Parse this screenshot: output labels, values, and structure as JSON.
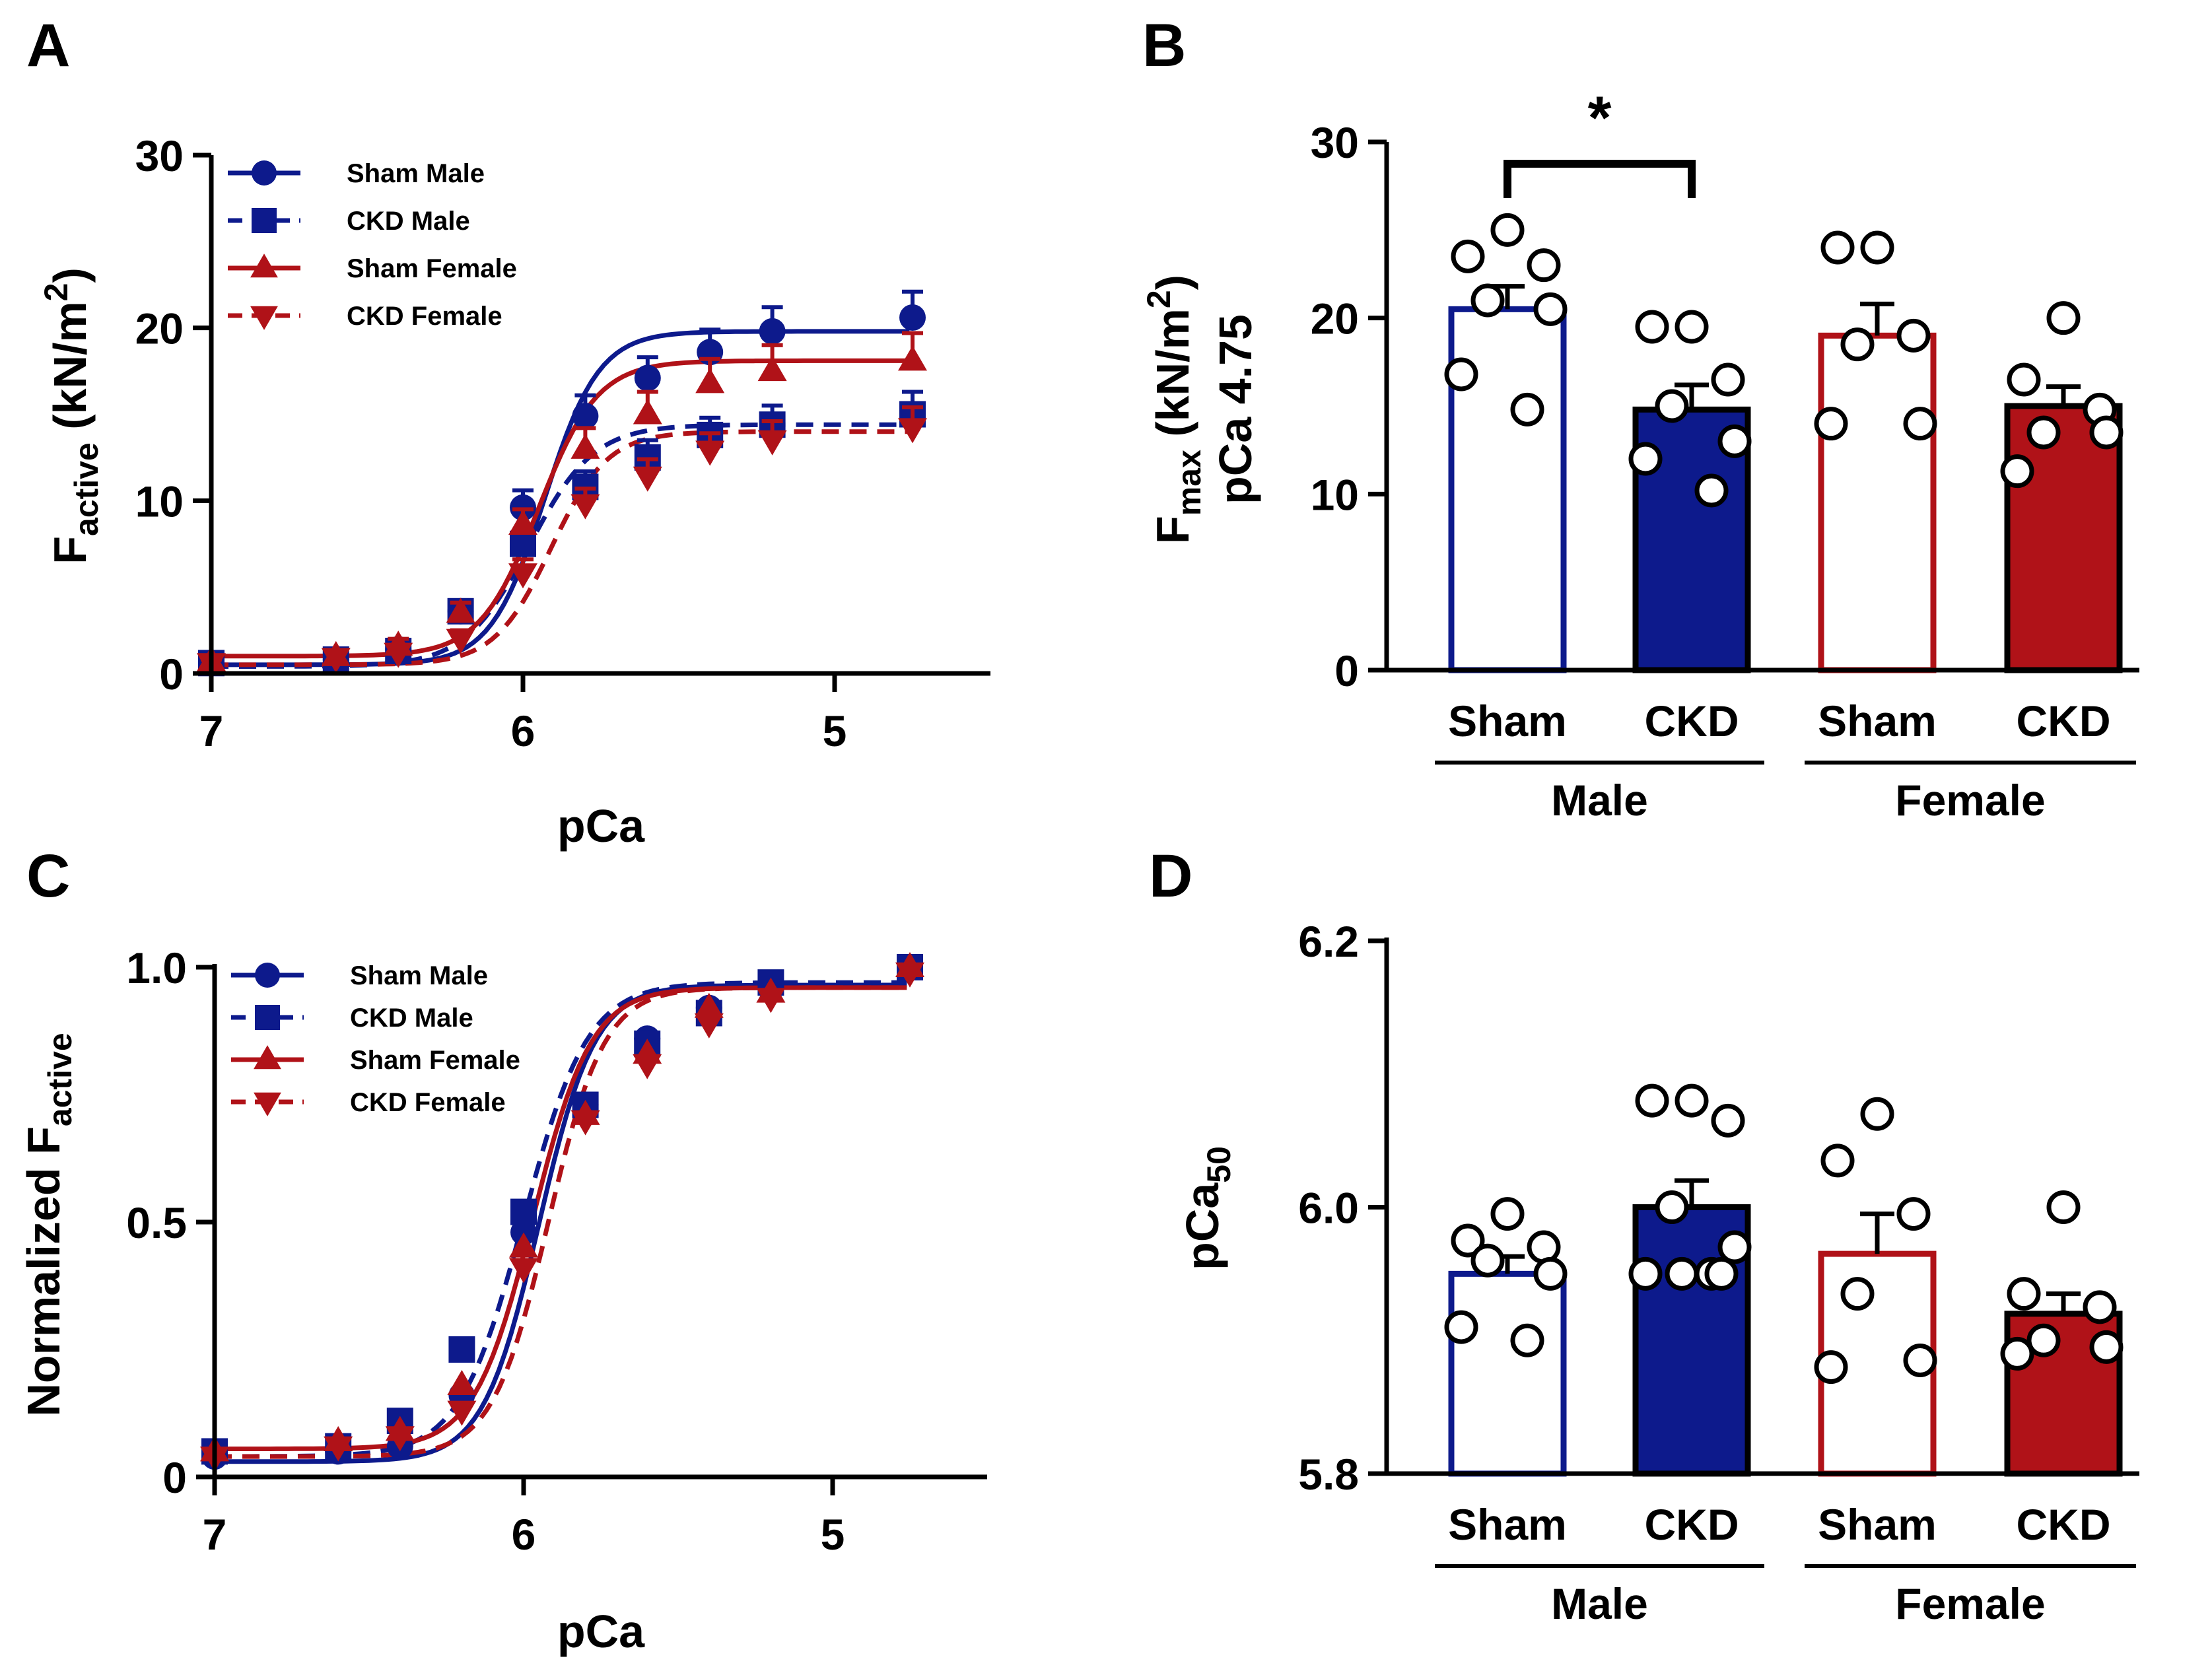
{
  "colors": {
    "navy": "#0d1a8c",
    "red": "#b01218",
    "black": "#000000"
  },
  "chart_data": [
    {
      "panel": "A",
      "type": "line",
      "xlabel": "pCa",
      "ylabel_main": "F",
      "ylabel_sub": "active",
      "ylabel_unit_pre": " (kN/m",
      "ylabel_unit_sup": "2",
      "ylabel_unit_post": ")",
      "xlim": [
        7,
        4.5
      ],
      "ylim": [
        0,
        30
      ],
      "xticks": [
        7,
        6,
        5
      ],
      "xtick_labels": [
        "7",
        "6",
        "5"
      ],
      "yticks": [
        0,
        10,
        20,
        30
      ],
      "ytick_labels": [
        "0",
        "10",
        "20",
        "30"
      ],
      "legend_position": "top-left",
      "x": [
        7.0,
        6.6,
        6.4,
        6.2,
        6.0,
        5.8,
        5.6,
        5.4,
        5.2,
        4.75
      ],
      "series": [
        {
          "name": "Sham Male",
          "color": "navy",
          "marker": "circle",
          "dash": "solid",
          "values": [
            0.6,
            0.8,
            1.4,
            3.6,
            9.6,
            14.9,
            17.1,
            18.6,
            19.8,
            20.6
          ],
          "errors": [
            0.2,
            0.3,
            0.4,
            0.6,
            1.0,
            1.2,
            1.2,
            1.3,
            1.4,
            1.5
          ],
          "fit": {
            "bottom": 0.5,
            "top": 19.8,
            "pca50": 5.93,
            "hill": 5.0
          }
        },
        {
          "name": "CKD Male",
          "color": "navy",
          "marker": "square",
          "dash": "dashed",
          "values": [
            0.6,
            0.8,
            1.3,
            3.6,
            7.5,
            10.8,
            12.5,
            13.8,
            14.4,
            15.0
          ],
          "errors": [
            0.2,
            0.3,
            0.3,
            0.5,
            0.8,
            0.9,
            1.0,
            1.0,
            1.1,
            1.3
          ],
          "fit": {
            "bottom": 0.4,
            "top": 14.4,
            "pca50": 5.98,
            "hill": 4.2
          }
        },
        {
          "name": "Sham Female",
          "color": "red",
          "marker": "triangle-up",
          "dash": "solid",
          "values": [
            0.7,
            1.0,
            1.6,
            3.5,
            8.6,
            13.0,
            15.0,
            16.8,
            17.5,
            18.1
          ],
          "errors": [
            0.2,
            0.3,
            0.4,
            0.6,
            0.9,
            1.2,
            1.3,
            1.4,
            1.5,
            1.6
          ],
          "fit": {
            "bottom": 1.0,
            "top": 18.1,
            "pca50": 5.95,
            "hill": 4.6
          }
        },
        {
          "name": "CKD  Female",
          "color": "red",
          "marker": "triangle-down",
          "dash": "dashed",
          "values": [
            0.6,
            0.9,
            1.2,
            2.0,
            5.8,
            9.8,
            11.4,
            12.9,
            13.5,
            14.2
          ],
          "errors": [
            0.2,
            0.3,
            0.3,
            0.5,
            0.8,
            0.9,
            1.0,
            1.0,
            1.1,
            1.2
          ],
          "fit": {
            "bottom": 0.5,
            "top": 14.0,
            "pca50": 5.91,
            "hill": 4.8
          }
        }
      ]
    },
    {
      "panel": "B",
      "type": "bar",
      "ylabel_line1_main": "F",
      "ylabel_line1_sub": "max",
      "ylabel_line1_unit_pre": " (kN/m",
      "ylabel_line1_unit_sup": "2",
      "ylabel_line1_unit_post": ")",
      "ylabel_line2": "pCa 4.75",
      "ylim": [
        0,
        30
      ],
      "yticks": [
        0,
        10,
        20,
        30
      ],
      "ytick_labels": [
        "0",
        "10",
        "20",
        "30"
      ],
      "categories": [
        "Sham",
        "CKD",
        "Sham",
        "CKD"
      ],
      "groups": [
        "Male",
        "Female"
      ],
      "bar_fill": [
        "none",
        "navy",
        "none",
        "red"
      ],
      "bar_edge": [
        "navy",
        "black",
        "red",
        "black"
      ],
      "values": [
        20.5,
        14.8,
        19.0,
        15.0
      ],
      "errors": [
        1.3,
        1.4,
        1.8,
        1.1
      ],
      "points": [
        [
          25.0,
          23.5,
          23.0,
          21.0,
          20.5,
          16.8,
          14.8
        ],
        [
          19.5,
          19.5,
          16.5,
          15.0,
          13.0,
          12.0,
          10.2
        ],
        [
          24.0,
          24.0,
          19.0,
          18.5,
          14.0,
          14.0
        ],
        [
          20.0,
          16.5,
          14.8,
          13.5,
          13.5,
          11.3
        ]
      ],
      "significance": {
        "label": "*",
        "between": [
          0,
          1
        ]
      }
    },
    {
      "panel": "C",
      "type": "line",
      "xlabel": "pCa",
      "ylabel_pre": "Normalized F",
      "ylabel_sub": "active",
      "xlim": [
        7,
        4.5
      ],
      "ylim": [
        0,
        1.0
      ],
      "xticks": [
        7,
        6,
        5
      ],
      "xtick_labels": [
        "7",
        "6",
        "5"
      ],
      "yticks": [
        0,
        0.5,
        1.0
      ],
      "ytick_labels": [
        "0",
        "0.5",
        "1.0"
      ],
      "legend_position": "top-left",
      "x": [
        7.0,
        6.6,
        6.4,
        6.2,
        6.0,
        5.8,
        5.6,
        5.4,
        5.2,
        4.75
      ],
      "series": [
        {
          "name": "Sham Male",
          "color": "navy",
          "marker": "circle",
          "dash": "solid",
          "values": [
            0.04,
            0.05,
            0.06,
            0.16,
            0.48,
            0.73,
            0.86,
            0.92,
            0.96,
            1.0
          ],
          "fit": {
            "bottom": 0.03,
            "top": 0.965,
            "pca50": 5.95,
            "hill": 4.8
          }
        },
        {
          "name": "CKD Male",
          "color": "navy",
          "marker": "square",
          "dash": "dashed",
          "values": [
            0.05,
            0.06,
            0.11,
            0.25,
            0.52,
            0.73,
            0.85,
            0.91,
            0.97,
            1.0
          ],
          "fit": {
            "bottom": 0.04,
            "top": 0.97,
            "pca50": 6.0,
            "hill": 4.2
          }
        },
        {
          "name": "Sham Female",
          "color": "red",
          "marker": "triangle-up",
          "dash": "solid",
          "values": [
            0.05,
            0.07,
            0.09,
            0.18,
            0.45,
            0.71,
            0.83,
            0.92,
            0.95,
            1.0
          ],
          "fit": {
            "bottom": 0.055,
            "top": 0.96,
            "pca50": 5.97,
            "hill": 4.6
          }
        },
        {
          "name": "CKD Female",
          "color": "red",
          "marker": "triangle-down",
          "dash": "dashed",
          "values": [
            0.04,
            0.06,
            0.08,
            0.13,
            0.41,
            0.7,
            0.81,
            0.89,
            0.94,
            0.99
          ],
          "fit": {
            "bottom": 0.04,
            "top": 0.96,
            "pca50": 5.92,
            "hill": 4.8
          }
        }
      ]
    },
    {
      "panel": "D",
      "type": "bar",
      "ylabel_main": "pCa",
      "ylabel_sub": "50",
      "ylim": [
        5.8,
        6.2
      ],
      "yticks": [
        5.8,
        6.0,
        6.2
      ],
      "ytick_labels": [
        "5.8",
        "6.0",
        "6.2"
      ],
      "categories": [
        "Sham",
        "CKD",
        "Sham",
        "CKD"
      ],
      "groups": [
        "Male",
        "Female"
      ],
      "bar_fill": [
        "none",
        "navy",
        "none",
        "red"
      ],
      "bar_edge": [
        "navy",
        "black",
        "red",
        "black"
      ],
      "values": [
        5.95,
        6.0,
        5.965,
        5.92
      ],
      "errors": [
        0.013,
        0.02,
        0.03,
        0.015
      ],
      "points": [
        [
          5.995,
          5.975,
          5.97,
          5.96,
          5.95,
          5.91,
          5.9
        ],
        [
          6.08,
          6.08,
          6.065,
          6.0,
          5.97,
          5.95,
          5.95,
          5.95,
          5.95
        ],
        [
          6.07,
          6.035,
          5.995,
          5.935,
          5.885,
          5.88
        ],
        [
          6.0,
          5.935,
          5.925,
          5.9,
          5.895,
          5.89
        ]
      ]
    }
  ]
}
